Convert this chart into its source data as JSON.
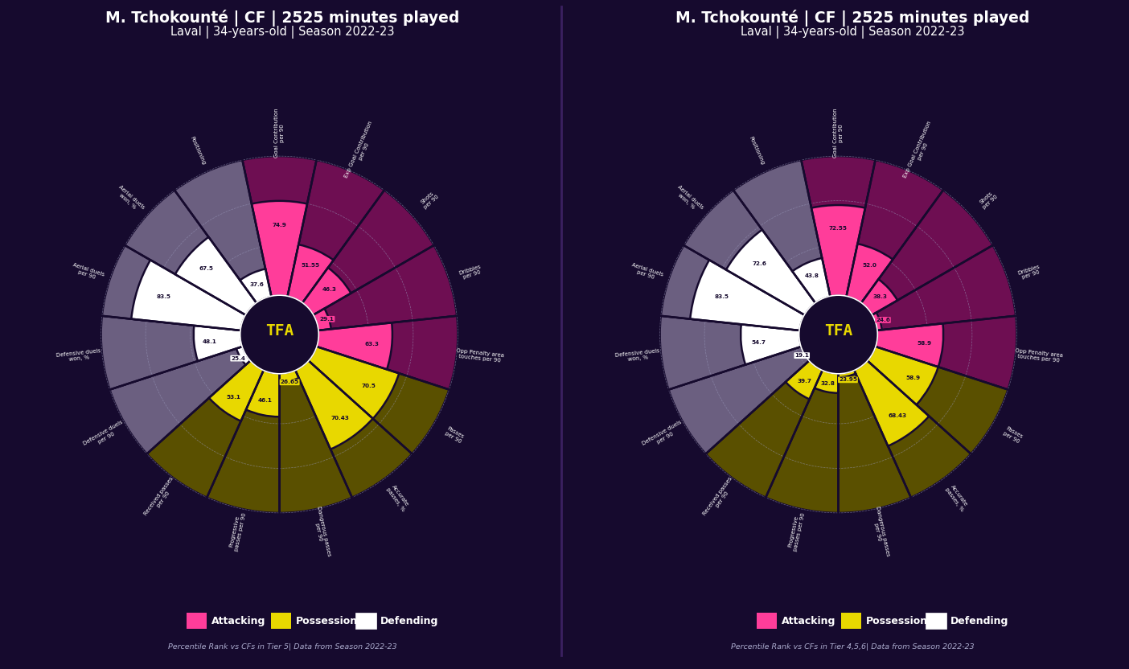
{
  "title": "M. Tchokounté | CF | 2525 minutes played",
  "subtitle": "Laval | 34-years-old | Season 2022-23",
  "background_color": "#160a2e",
  "categories": [
    "Goal Contribution\nper 90",
    "Exp Goal Contribution\nper 90",
    "Shots\nper 90",
    "Dribbles\nper 90",
    "Opp Penalty area\ntouches per 90",
    "Passes\nper 90",
    "Accurate\npasses, %",
    "Dangerous passes\nper 90",
    "Progressive\npasses per 90",
    "Received passes\nper 90",
    "Defensive duels\nper 90",
    "Defensive duels\nwon, %",
    "Aerial duels\nper 90",
    "Aerial duels\nwon, %",
    "Positioning"
  ],
  "category_types": [
    "attacking",
    "attacking",
    "attacking",
    "attacking",
    "attacking",
    "possession",
    "possession",
    "possession",
    "possession",
    "possession",
    "defending",
    "defending",
    "defending",
    "defending",
    "defending"
  ],
  "chart1_values": [
    74.9,
    51.55,
    46.3,
    29.1,
    63.3,
    70.5,
    70.43,
    26.65,
    46.1,
    53.1,
    25.4,
    48.1,
    83.5,
    67.5,
    37.6
  ],
  "chart2_values": [
    72.55,
    52.0,
    38.3,
    24.6,
    58.9,
    58.9,
    68.43,
    23.95,
    32.8,
    39.7,
    19.1,
    54.7,
    83.5,
    72.6,
    43.8
  ],
  "colors": {
    "attacking": "#ff3d9a",
    "possession": "#e8d800",
    "defending": "#ffffff",
    "defending_bg": "#6b5f80",
    "possession_bg": "#5a5000",
    "attacking_bg": "#6e0e52",
    "grid_line": "#9999bb",
    "text_yellow": "#e8d800"
  },
  "legend": [
    {
      "label": "Attacking",
      "color": "#ff3d9a"
    },
    {
      "label": "Possession",
      "color": "#e8d800"
    },
    {
      "label": "Defending",
      "color": "#ffffff"
    }
  ],
  "footnote1": "Percentile Rank vs CFs in Tier 5| Data from Season 2022-23",
  "footnote2": "Percentile Rank vs CFs in Tier 4,5,6| Data from Season 2022-23"
}
